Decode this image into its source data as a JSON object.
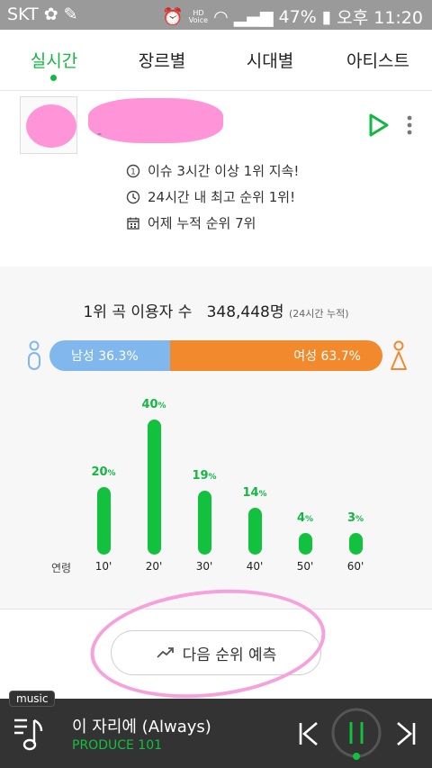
{
  "status": {
    "carrier": "SKT",
    "battery": "47%",
    "time": "오후 11:20",
    "hd_label": "HD\nVoice"
  },
  "tabs": [
    {
      "label": "실시간",
      "active": true
    },
    {
      "label": "장르별",
      "active": false
    },
    {
      "label": "시대별",
      "active": false
    },
    {
      "label": "아티스트",
      "active": false
    }
  ],
  "song": {
    "dash": "-"
  },
  "facts": [
    {
      "icon": "clock-one-icon",
      "text": "이슈 3시간 이상 1위 지속!"
    },
    {
      "icon": "clock-icon",
      "text": "24시간 내 최고 순위 1위!"
    },
    {
      "icon": "calendar-icon",
      "text": "어제 누적 순위 7위"
    }
  ],
  "users": {
    "label": "1위 곡 이용자 수",
    "count": "348,448명",
    "note": "(24시간 누적)"
  },
  "gender": {
    "male_label": "남성 36.3%",
    "female_label": "여성 63.7%",
    "male_pct": 36.3,
    "female_pct": 63.7,
    "male_color": "#80b7ec",
    "female_color": "#f28a2d"
  },
  "chart_data": {
    "type": "bar",
    "axis_label": "연령",
    "categories": [
      "10'",
      "20'",
      "30'",
      "40'",
      "50'",
      "60'"
    ],
    "values": [
      20,
      40,
      19,
      14,
      4,
      3
    ],
    "value_labels": [
      "20",
      "40",
      "19",
      "14",
      "4",
      "3"
    ],
    "unit": "%",
    "color": "#12c23e"
  },
  "predict": {
    "label": "다음 순위 예측"
  },
  "player": {
    "tag": "music",
    "title": "이 자리에 (Always)",
    "artist": "PRODUCE 101",
    "accent": "#12c23e"
  }
}
